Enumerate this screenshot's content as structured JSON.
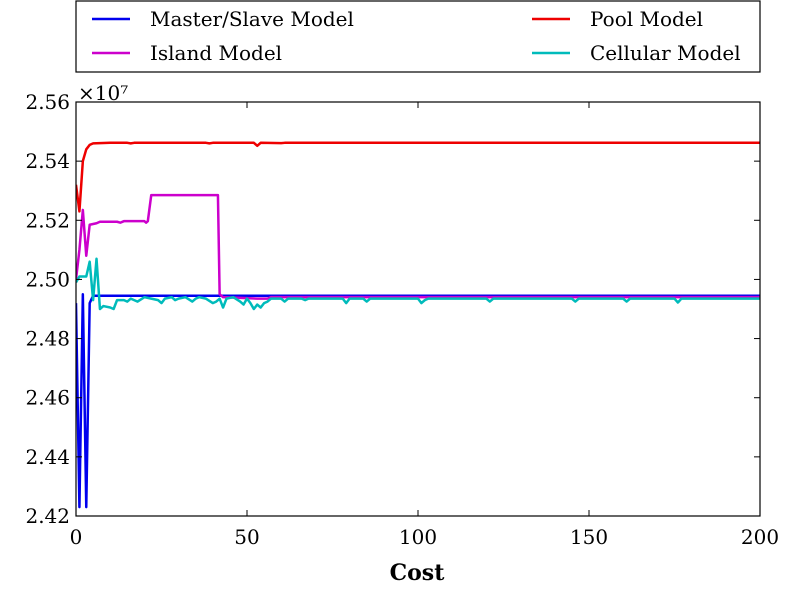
{
  "chart_data": {
    "type": "line",
    "title": "",
    "xlabel": "Cost",
    "ylabel": "",
    "xlim": [
      0,
      200
    ],
    "ylim": [
      24200000,
      25600000
    ],
    "x_ticks": [
      0,
      50,
      100,
      150,
      200
    ],
    "x_tick_labels": [
      "0",
      "50",
      "100",
      "150",
      "200"
    ],
    "y_ticks": [
      24200000,
      24400000,
      24600000,
      24800000,
      25000000,
      25200000,
      25400000,
      25600000
    ],
    "y_tick_labels": [
      "2.42",
      "2.44",
      "2.46",
      "2.48",
      "2.50",
      "2.52",
      "2.54",
      "2.56"
    ],
    "y_offset_label": "×10⁷",
    "grid": false,
    "legend_position": "top",
    "series": [
      {
        "name": "Master/Slave Model",
        "color": "#0000ee",
        "points": [
          [
            0,
            24920000
          ],
          [
            1,
            24230000
          ],
          [
            2,
            24950000
          ],
          [
            3,
            24230000
          ],
          [
            4,
            24920000
          ],
          [
            5,
            24945000
          ],
          [
            200,
            24945000
          ]
        ]
      },
      {
        "name": "Pool Model",
        "color": "#ee0000",
        "points": [
          [
            0,
            25320000
          ],
          [
            1,
            25230000
          ],
          [
            2,
            25400000
          ],
          [
            3,
            25440000
          ],
          [
            4,
            25455000
          ],
          [
            5,
            25460000
          ],
          [
            10,
            25462000
          ],
          [
            15,
            25462000
          ],
          [
            16,
            25460000
          ],
          [
            17,
            25462000
          ],
          [
            38,
            25462000
          ],
          [
            39,
            25460000
          ],
          [
            40,
            25462000
          ],
          [
            52,
            25462000
          ],
          [
            53,
            25452000
          ],
          [
            54,
            25462000
          ],
          [
            60,
            25461000
          ],
          [
            61,
            25462000
          ],
          [
            200,
            25462000
          ]
        ]
      },
      {
        "name": "Island Model",
        "color": "#cc00cc",
        "points": [
          [
            0,
            25000000
          ],
          [
            1,
            25100000
          ],
          [
            2,
            25235000
          ],
          [
            3,
            25080000
          ],
          [
            4,
            25185000
          ],
          [
            6,
            25190000
          ],
          [
            7,
            25195000
          ],
          [
            12,
            25195000
          ],
          [
            13,
            25192000
          ],
          [
            14,
            25197000
          ],
          [
            20,
            25197000
          ],
          [
            20.5,
            25192000
          ],
          [
            21,
            25197000
          ],
          [
            22,
            25285000
          ],
          [
            41.5,
            25285000
          ],
          [
            42,
            24950000
          ],
          [
            43,
            24940000
          ],
          [
            53,
            24935000
          ],
          [
            56,
            24935000
          ],
          [
            57,
            24940000
          ],
          [
            200,
            24940000
          ]
        ]
      },
      {
        "name": "Cellular Model",
        "color": "#00bbbb",
        "points": [
          [
            0,
            24990000
          ],
          [
            1,
            25010000
          ],
          [
            3,
            25010000
          ],
          [
            4,
            25060000
          ],
          [
            5,
            24930000
          ],
          [
            6,
            25070000
          ],
          [
            7,
            24900000
          ],
          [
            8,
            24910000
          ],
          [
            10,
            24905000
          ],
          [
            11,
            24900000
          ],
          [
            12,
            24930000
          ],
          [
            14,
            24930000
          ],
          [
            15,
            24925000
          ],
          [
            16,
            24935000
          ],
          [
            17,
            24930000
          ],
          [
            18,
            24925000
          ],
          [
            20,
            24940000
          ],
          [
            22,
            24935000
          ],
          [
            24,
            24930000
          ],
          [
            25,
            24920000
          ],
          [
            26,
            24935000
          ],
          [
            28,
            24940000
          ],
          [
            29,
            24930000
          ],
          [
            30,
            24935000
          ],
          [
            32,
            24940000
          ],
          [
            34,
            24925000
          ],
          [
            35,
            24935000
          ],
          [
            36,
            24940000
          ],
          [
            38,
            24935000
          ],
          [
            40,
            24920000
          ],
          [
            41,
            24925000
          ],
          [
            42,
            24935000
          ],
          [
            43,
            24905000
          ],
          [
            44,
            24935000
          ],
          [
            46,
            24940000
          ],
          [
            48,
            24925000
          ],
          [
            49,
            24915000
          ],
          [
            50,
            24935000
          ],
          [
            51,
            24920000
          ],
          [
            52,
            24900000
          ],
          [
            53,
            24915000
          ],
          [
            54,
            24905000
          ],
          [
            55,
            24920000
          ],
          [
            56,
            24925000
          ],
          [
            57,
            24935000
          ],
          [
            60,
            24935000
          ],
          [
            61,
            24925000
          ],
          [
            62,
            24935000
          ],
          [
            66,
            24935000
          ],
          [
            67,
            24930000
          ],
          [
            68,
            24935000
          ],
          [
            78,
            24935000
          ],
          [
            79,
            24920000
          ],
          [
            80,
            24935000
          ],
          [
            84,
            24935000
          ],
          [
            85,
            24925000
          ],
          [
            86,
            24935000
          ],
          [
            100,
            24935000
          ],
          [
            101,
            24920000
          ],
          [
            102,
            24930000
          ],
          [
            103,
            24935000
          ],
          [
            120,
            24935000
          ],
          [
            121,
            24925000
          ],
          [
            122,
            24935000
          ],
          [
            145,
            24935000
          ],
          [
            146,
            24925000
          ],
          [
            147,
            24935000
          ],
          [
            160,
            24935000
          ],
          [
            161,
            24925000
          ],
          [
            162,
            24935000
          ],
          [
            175,
            24935000
          ],
          [
            176,
            24922000
          ],
          [
            177,
            24935000
          ],
          [
            200,
            24935000
          ]
        ]
      }
    ]
  }
}
